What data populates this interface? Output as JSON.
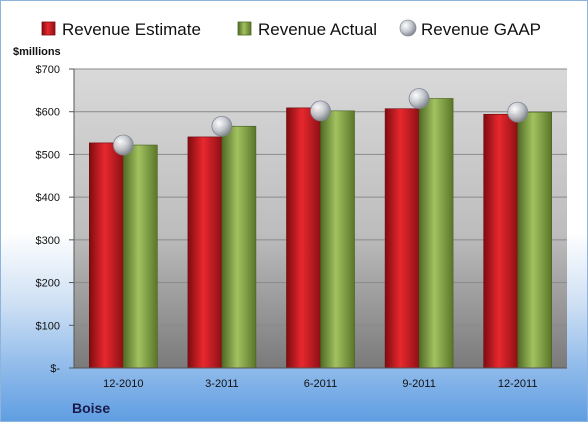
{
  "chart_data": {
    "type": "bar",
    "company": "Boise",
    "unit_label": "$millions",
    "categories": [
      "12-2010",
      "3-2011",
      "6-2011",
      "9-2011",
      "12-2011"
    ],
    "series": [
      {
        "name": "Revenue Estimate",
        "kind": "bar",
        "color": "#c4161c",
        "values": [
          527,
          541,
          609,
          607,
          594
        ]
      },
      {
        "name": "Revenue Actual",
        "kind": "bar",
        "color": "#7f9d42",
        "values": [
          522,
          566,
          602,
          631,
          599
        ]
      },
      {
        "name": "Revenue GAAP",
        "kind": "marker",
        "color": "#b8bcc4",
        "values": [
          522,
          566,
          602,
          631,
          599
        ]
      }
    ],
    "y_ticks": [
      {
        "value": 0,
        "label": "$-"
      },
      {
        "value": 100,
        "label": "$100"
      },
      {
        "value": 200,
        "label": "$200"
      },
      {
        "value": 300,
        "label": "$300"
      },
      {
        "value": 400,
        "label": "$400"
      },
      {
        "value": 500,
        "label": "$500"
      },
      {
        "value": 600,
        "label": "$600"
      },
      {
        "value": 700,
        "label": "$700"
      }
    ],
    "ylim": [
      0,
      700
    ],
    "grid": true,
    "legend_position": "top"
  }
}
